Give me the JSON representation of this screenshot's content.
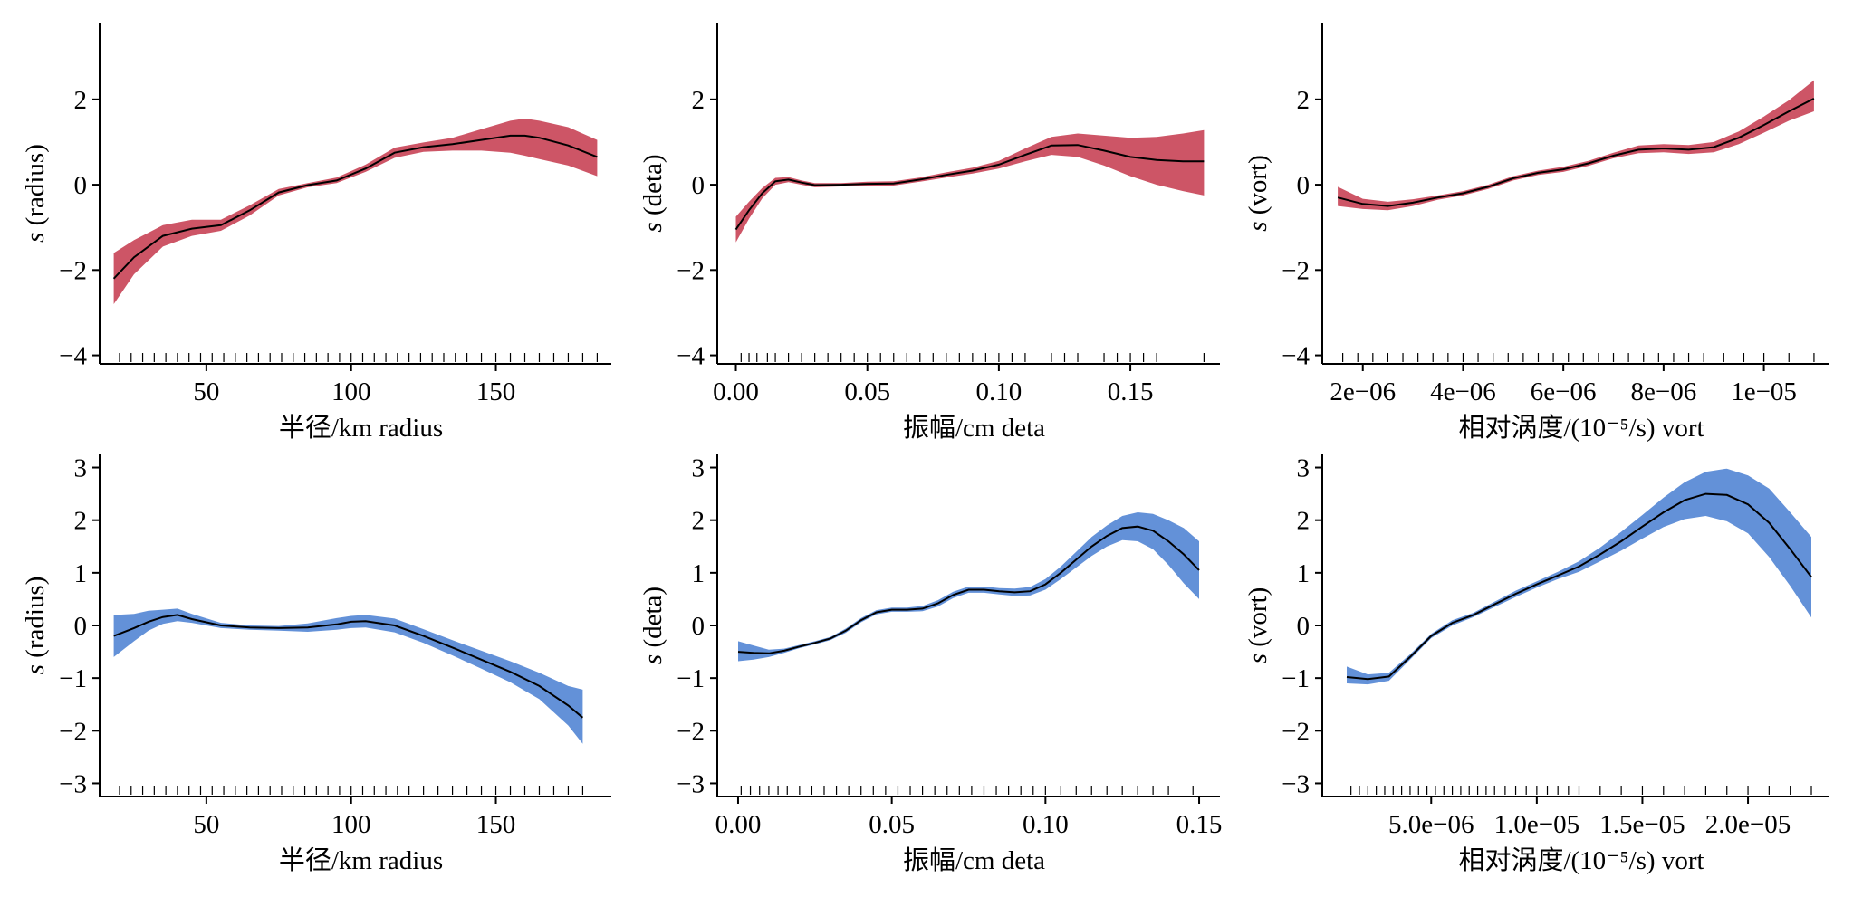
{
  "colors": {
    "row1_band": "#cd5566",
    "row2_band": "#6391d8",
    "line": "#000000"
  },
  "chart_data": [
    {
      "type": "line",
      "xlabel": "半径/km radius",
      "ylabel_s": "s",
      "ylabel_var": " (radius)",
      "xlim": [
        15,
        188
      ],
      "ylim": [
        -4.2,
        3.8
      ],
      "xticks": [
        50,
        100,
        150
      ],
      "xtick_labels": [
        "50",
        "100",
        "150"
      ],
      "yticks": [
        -4,
        -2,
        0,
        2
      ],
      "ytick_labels": [
        "−4",
        "−2",
        "0",
        "2"
      ],
      "band_color": "#cd5566",
      "series": [
        {
          "x": [
            18,
            25,
            35,
            45,
            55,
            65,
            75,
            85,
            95,
            105,
            115,
            125,
            135,
            145,
            155,
            160,
            165,
            175,
            185
          ],
          "y": [
            -2.2,
            -1.7,
            -1.2,
            -1.03,
            -0.95,
            -0.6,
            -0.18,
            -0.01,
            0.1,
            0.38,
            0.75,
            0.88,
            0.95,
            1.05,
            1.15,
            1.15,
            1.1,
            0.92,
            0.65
          ],
          "lower": [
            -2.8,
            -2.1,
            -1.45,
            -1.2,
            -1.08,
            -0.72,
            -0.25,
            -0.06,
            0.04,
            0.3,
            0.63,
            0.77,
            0.8,
            0.8,
            0.75,
            0.68,
            0.6,
            0.45,
            0.2
          ],
          "upper": [
            -1.6,
            -1.3,
            -0.95,
            -0.82,
            -0.82,
            -0.48,
            -0.1,
            0.04,
            0.17,
            0.47,
            0.87,
            0.99,
            1.1,
            1.3,
            1.5,
            1.55,
            1.5,
            1.35,
            1.05
          ]
        }
      ],
      "rug": [
        20,
        24,
        28,
        32,
        36,
        40,
        44,
        48,
        52,
        56,
        60,
        64,
        68,
        72,
        76,
        80,
        84,
        88,
        92,
        96,
        100,
        104,
        108,
        112,
        116,
        120,
        124,
        128,
        132,
        136,
        140,
        145,
        150,
        155,
        160,
        165,
        170,
        175,
        180,
        185
      ]
    },
    {
      "type": "line",
      "xlabel": "振幅/cm deta",
      "ylabel_s": "s",
      "ylabel_var": " (deta)",
      "xlim": [
        -0.005,
        0.182
      ],
      "ylim": [
        -4.2,
        3.8
      ],
      "xticks": [
        0.0,
        0.05,
        0.1,
        0.15
      ],
      "xtick_labels": [
        "0.00",
        "0.05",
        "0.10",
        "0.15"
      ],
      "yticks": [
        -4,
        -2,
        0,
        2
      ],
      "ytick_labels": [
        "−4",
        "−2",
        "0",
        "2"
      ],
      "band_color": "#cd5566",
      "series": [
        {
          "x": [
            0.0,
            0.005,
            0.01,
            0.015,
            0.02,
            0.025,
            0.03,
            0.04,
            0.05,
            0.06,
            0.07,
            0.08,
            0.09,
            0.1,
            0.11,
            0.12,
            0.13,
            0.14,
            0.15,
            0.16,
            0.17,
            0.178
          ],
          "y": [
            -1.05,
            -0.6,
            -0.2,
            0.08,
            0.12,
            0.05,
            -0.01,
            0.0,
            0.02,
            0.03,
            0.12,
            0.23,
            0.33,
            0.47,
            0.7,
            0.92,
            0.93,
            0.8,
            0.65,
            0.58,
            0.55,
            0.55
          ],
          "lower": [
            -1.35,
            -0.8,
            -0.32,
            0.0,
            0.06,
            0.0,
            -0.06,
            -0.04,
            -0.03,
            -0.02,
            0.07,
            0.17,
            0.26,
            0.38,
            0.55,
            0.7,
            0.65,
            0.45,
            0.2,
            0.0,
            -0.15,
            -0.25
          ],
          "upper": [
            -0.75,
            -0.4,
            -0.08,
            0.16,
            0.18,
            0.1,
            0.04,
            0.04,
            0.07,
            0.08,
            0.17,
            0.29,
            0.4,
            0.56,
            0.85,
            1.12,
            1.2,
            1.15,
            1.1,
            1.12,
            1.2,
            1.28
          ]
        }
      ],
      "rug": [
        0.002,
        0.005,
        0.008,
        0.012,
        0.015,
        0.02,
        0.025,
        0.03,
        0.035,
        0.04,
        0.045,
        0.05,
        0.055,
        0.06,
        0.065,
        0.07,
        0.075,
        0.08,
        0.085,
        0.09,
        0.095,
        0.1,
        0.105,
        0.11,
        0.12,
        0.125,
        0.13,
        0.14,
        0.145,
        0.15,
        0.155,
        0.16,
        0.178
      ]
    },
    {
      "type": "line",
      "xlabel": "相对涡度/(10⁻⁵/s) vort",
      "ylabel_s": "s",
      "ylabel_var": " (vort)",
      "xlim": [
        1.3e-06,
        1.12e-05
      ],
      "ylim": [
        -4.2,
        3.8
      ],
      "xticks": [
        2e-06,
        4e-06,
        6e-06,
        8e-06,
        1e-05
      ],
      "xtick_labels": [
        "2e−06",
        "4e−06",
        "6e−06",
        "8e−06",
        "1e−05"
      ],
      "yticks": [
        -4,
        -2,
        0,
        2
      ],
      "ytick_labels": [
        "−4",
        "−2",
        "0",
        "2"
      ],
      "band_color": "#cd5566",
      "series": [
        {
          "x": [
            1.5e-06,
            2e-06,
            2.5e-06,
            3e-06,
            3.5e-06,
            4e-06,
            4.5e-06,
            5e-06,
            5.5e-06,
            6e-06,
            6.5e-06,
            7e-06,
            7.5e-06,
            8e-06,
            8.5e-06,
            9e-06,
            9.5e-06,
            1e-05,
            1.05e-05,
            1.1e-05
          ],
          "y": [
            -0.3,
            -0.45,
            -0.5,
            -0.42,
            -0.3,
            -0.2,
            -0.05,
            0.15,
            0.28,
            0.36,
            0.5,
            0.68,
            0.82,
            0.85,
            0.82,
            0.88,
            1.1,
            1.4,
            1.72,
            2.02
          ],
          "lower": [
            -0.5,
            -0.57,
            -0.6,
            -0.5,
            -0.35,
            -0.25,
            -0.1,
            0.1,
            0.23,
            0.3,
            0.44,
            0.62,
            0.74,
            0.76,
            0.72,
            0.76,
            0.95,
            1.22,
            1.5,
            1.72
          ],
          "upper": [
            -0.05,
            -0.33,
            -0.4,
            -0.34,
            -0.25,
            -0.15,
            0.0,
            0.2,
            0.33,
            0.42,
            0.56,
            0.75,
            0.92,
            0.95,
            0.93,
            1.0,
            1.25,
            1.6,
            1.98,
            2.45
          ]
        }
      ],
      "rug": [
        1.6e-06,
        1.9e-06,
        2.2e-06,
        2.5e-06,
        2.8e-06,
        3.1e-06,
        3.4e-06,
        3.7e-06,
        4e-06,
        4.3e-06,
        4.6e-06,
        4.9e-06,
        5.2e-06,
        5.5e-06,
        5.8e-06,
        6.1e-06,
        6.4e-06,
        6.7e-06,
        7e-06,
        7.3e-06,
        7.6e-06,
        7.9e-06,
        8.2e-06,
        8.5e-06,
        8.8e-06,
        9.2e-06,
        9.6e-06,
        1e-05,
        1.05e-05,
        1.1e-05
      ]
    },
    {
      "type": "line",
      "xlabel": "半径/km radius",
      "ylabel_s": "s",
      "ylabel_var": " (radius)",
      "xlim": [
        15,
        188
      ],
      "ylim": [
        -3.25,
        3.25
      ],
      "xticks": [
        50,
        100,
        150
      ],
      "xtick_labels": [
        "50",
        "100",
        "150"
      ],
      "yticks": [
        -3,
        -2,
        -1,
        0,
        1,
        2,
        3
      ],
      "ytick_labels": [
        "−3",
        "−2",
        "−1",
        "0",
        "1",
        "2",
        "3"
      ],
      "band_color": "#6391d8",
      "series": [
        {
          "x": [
            18,
            25,
            30,
            35,
            40,
            45,
            55,
            65,
            75,
            85,
            95,
            100,
            105,
            115,
            125,
            135,
            145,
            155,
            165,
            175,
            180
          ],
          "y": [
            -0.2,
            -0.05,
            0.07,
            0.16,
            0.2,
            0.12,
            0.0,
            -0.04,
            -0.05,
            -0.04,
            0.02,
            0.07,
            0.08,
            0.0,
            -0.2,
            -0.42,
            -0.65,
            -0.88,
            -1.15,
            -1.52,
            -1.75
          ],
          "lower": [
            -0.6,
            -0.3,
            -0.1,
            0.03,
            0.08,
            0.05,
            -0.05,
            -0.08,
            -0.1,
            -0.12,
            -0.08,
            -0.05,
            -0.04,
            -0.13,
            -0.33,
            -0.57,
            -0.82,
            -1.08,
            -1.4,
            -1.9,
            -2.25
          ],
          "upper": [
            0.2,
            0.22,
            0.28,
            0.3,
            0.32,
            0.22,
            0.05,
            0.0,
            -0.01,
            0.04,
            0.14,
            0.18,
            0.2,
            0.13,
            -0.07,
            -0.28,
            -0.48,
            -0.68,
            -0.9,
            -1.15,
            -1.22
          ]
        }
      ],
      "rug": [
        20,
        24,
        28,
        32,
        36,
        40,
        44,
        48,
        52,
        56,
        60,
        64,
        68,
        72,
        76,
        80,
        84,
        88,
        92,
        96,
        100,
        104,
        108,
        112,
        116,
        120,
        125,
        130,
        135,
        140,
        145,
        150,
        155,
        160,
        165,
        170,
        175,
        180
      ]
    },
    {
      "type": "line",
      "xlabel": "振幅/cm deta",
      "ylabel_s": "s",
      "ylabel_var": " (deta)",
      "xlim": [
        -0.005,
        0.155
      ],
      "ylim": [
        -3.25,
        3.25
      ],
      "xticks": [
        0.0,
        0.05,
        0.1,
        0.15
      ],
      "xtick_labels": [
        "0.00",
        "0.05",
        "0.10",
        "0.15"
      ],
      "yticks": [
        -3,
        -2,
        -1,
        0,
        1,
        2,
        3
      ],
      "ytick_labels": [
        "−3",
        "−2",
        "−1",
        "0",
        "1",
        "2",
        "3"
      ],
      "band_color": "#6391d8",
      "series": [
        {
          "x": [
            0.0,
            0.005,
            0.01,
            0.015,
            0.02,
            0.025,
            0.03,
            0.035,
            0.04,
            0.045,
            0.05,
            0.055,
            0.06,
            0.065,
            0.07,
            0.075,
            0.08,
            0.085,
            0.09,
            0.095,
            0.1,
            0.105,
            0.11,
            0.115,
            0.12,
            0.125,
            0.13,
            0.135,
            0.14,
            0.145,
            0.15
          ],
          "y": [
            -0.5,
            -0.52,
            -0.53,
            -0.48,
            -0.4,
            -0.33,
            -0.25,
            -0.1,
            0.1,
            0.25,
            0.3,
            0.3,
            0.32,
            0.42,
            0.58,
            0.68,
            0.68,
            0.65,
            0.63,
            0.65,
            0.78,
            1.0,
            1.25,
            1.5,
            1.7,
            1.85,
            1.88,
            1.8,
            1.6,
            1.35,
            1.05
          ],
          "lower": [
            -0.68,
            -0.65,
            -0.6,
            -0.52,
            -0.43,
            -0.36,
            -0.28,
            -0.14,
            0.06,
            0.21,
            0.26,
            0.26,
            0.27,
            0.36,
            0.52,
            0.62,
            0.62,
            0.59,
            0.56,
            0.57,
            0.68,
            0.88,
            1.1,
            1.32,
            1.5,
            1.62,
            1.6,
            1.45,
            1.15,
            0.8,
            0.5
          ],
          "upper": [
            -0.3,
            -0.38,
            -0.46,
            -0.44,
            -0.37,
            -0.3,
            -0.22,
            -0.06,
            0.14,
            0.29,
            0.34,
            0.34,
            0.37,
            0.48,
            0.64,
            0.74,
            0.74,
            0.71,
            0.7,
            0.73,
            0.88,
            1.12,
            1.4,
            1.68,
            1.9,
            2.08,
            2.15,
            2.12,
            2.0,
            1.85,
            1.6
          ]
        }
      ],
      "rug": [
        0.001,
        0.004,
        0.007,
        0.01,
        0.013,
        0.016,
        0.02,
        0.024,
        0.028,
        0.032,
        0.036,
        0.04,
        0.044,
        0.048,
        0.052,
        0.056,
        0.06,
        0.064,
        0.068,
        0.072,
        0.076,
        0.08,
        0.084,
        0.088,
        0.092,
        0.096,
        0.1,
        0.105,
        0.11,
        0.115,
        0.12,
        0.125,
        0.13,
        0.135,
        0.14,
        0.148
      ]
    },
    {
      "type": "line",
      "xlabel": "相对涡度/(10⁻⁵/s) vort",
      "ylabel_s": "s",
      "ylabel_var": " (vort)",
      "xlim": [
        1e-07,
        2.36e-05
      ],
      "ylim": [
        -3.25,
        3.25
      ],
      "xticks": [
        5e-06,
        1e-05,
        1.5e-05,
        2e-05
      ],
      "xtick_labels": [
        "5.0e−06",
        "1.0e−05",
        "1.5e−05",
        "2.0e−05"
      ],
      "yticks": [
        -3,
        -2,
        -1,
        0,
        1,
        2,
        3
      ],
      "ytick_labels": [
        "−3",
        "−2",
        "−1",
        "0",
        "1",
        "2",
        "3"
      ],
      "band_color": "#6391d8",
      "series": [
        {
          "x": [
            1e-06,
            2e-06,
            3e-06,
            4e-06,
            5e-06,
            6e-06,
            7e-06,
            8e-06,
            9e-06,
            1e-05,
            1.1e-05,
            1.2e-05,
            1.3e-05,
            1.4e-05,
            1.5e-05,
            1.6e-05,
            1.7e-05,
            1.8e-05,
            1.9e-05,
            2e-05,
            2.1e-05,
            2.2e-05,
            2.3e-05
          ],
          "y": [
            -0.98,
            -1.02,
            -0.97,
            -0.6,
            -0.2,
            0.05,
            0.2,
            0.4,
            0.6,
            0.78,
            0.95,
            1.12,
            1.35,
            1.6,
            1.88,
            2.15,
            2.38,
            2.5,
            2.48,
            2.3,
            1.95,
            1.45,
            0.92
          ],
          "lower": [
            -1.1,
            -1.12,
            -1.05,
            -0.65,
            -0.24,
            0.0,
            0.16,
            0.35,
            0.54,
            0.72,
            0.88,
            1.02,
            1.22,
            1.42,
            1.65,
            1.87,
            2.02,
            2.08,
            1.98,
            1.75,
            1.3,
            0.75,
            0.15
          ],
          "upper": [
            -0.78,
            -0.93,
            -0.9,
            -0.55,
            -0.16,
            0.1,
            0.24,
            0.45,
            0.66,
            0.84,
            1.02,
            1.22,
            1.48,
            1.78,
            2.1,
            2.43,
            2.72,
            2.92,
            2.98,
            2.85,
            2.6,
            2.15,
            1.68
          ]
        }
      ],
      "rug": [
        1.2e-06,
        1.6e-06,
        2e-06,
        2.4e-06,
        2.8e-06,
        3.2e-06,
        3.6e-06,
        4e-06,
        4.4e-06,
        4.8e-06,
        5.2e-06,
        5.6e-06,
        6e-06,
        6.4e-06,
        6.8e-06,
        7.2e-06,
        7.6e-06,
        8e-06,
        8.5e-06,
        9e-06,
        9.5e-06,
        1e-05,
        1.05e-05,
        1.1e-05,
        1.15e-05,
        1.2e-05,
        1.3e-05,
        1.4e-05,
        1.5e-05,
        1.6e-05,
        1.7e-05,
        1.8e-05,
        1.9e-05,
        2e-05,
        2.1e-05,
        2.2e-05,
        2.3e-05
      ]
    }
  ]
}
